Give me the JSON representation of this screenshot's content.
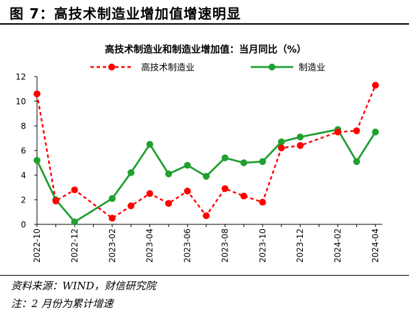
{
  "figure_title": "图 7：高技术制造业增加值增速明显",
  "source_note": "资料来源：WIND，财信研究院",
  "footnote": "注：2 月份为累计增速",
  "chart_data": {
    "type": "line",
    "title": "高技术制造业和制造业增加值：当月同比（%）",
    "xlabel": "",
    "ylabel": "",
    "ylim": [
      0,
      12
    ],
    "yticks": [
      0,
      2,
      4,
      6,
      8,
      10,
      12
    ],
    "grid": false,
    "legend_position": "top",
    "x_tick_labels": [
      "2022-10",
      "2022-12",
      "2023-02",
      "2023-04",
      "2023-06",
      "2023-08",
      "2023-10",
      "2023-12",
      "2024-02",
      "2024-04"
    ],
    "categories": [
      "2022-10",
      "2022-11",
      "2022-12",
      "2023-01",
      "2023-02",
      "2023-03",
      "2023-04",
      "2023-05",
      "2023-06",
      "2023-07",
      "2023-08",
      "2023-09",
      "2023-10",
      "2023-11",
      "2023-12",
      "2024-01",
      "2024-02",
      "2024-03",
      "2024-04"
    ],
    "series": [
      {
        "name": "高技术制造业",
        "color": "#ff0000",
        "style": "dashed",
        "values": [
          10.6,
          1.9,
          2.8,
          null,
          0.5,
          1.5,
          2.5,
          1.7,
          2.7,
          0.7,
          2.9,
          2.3,
          1.8,
          6.2,
          6.4,
          null,
          7.5,
          7.6,
          11.3
        ]
      },
      {
        "name": "制造业",
        "color": "#1fa02f",
        "style": "solid",
        "values": [
          5.2,
          2.0,
          0.2,
          null,
          2.1,
          4.2,
          6.5,
          4.1,
          4.8,
          3.9,
          5.4,
          5.0,
          5.1,
          6.7,
          7.1,
          null,
          7.7,
          5.1,
          7.5
        ]
      }
    ]
  }
}
